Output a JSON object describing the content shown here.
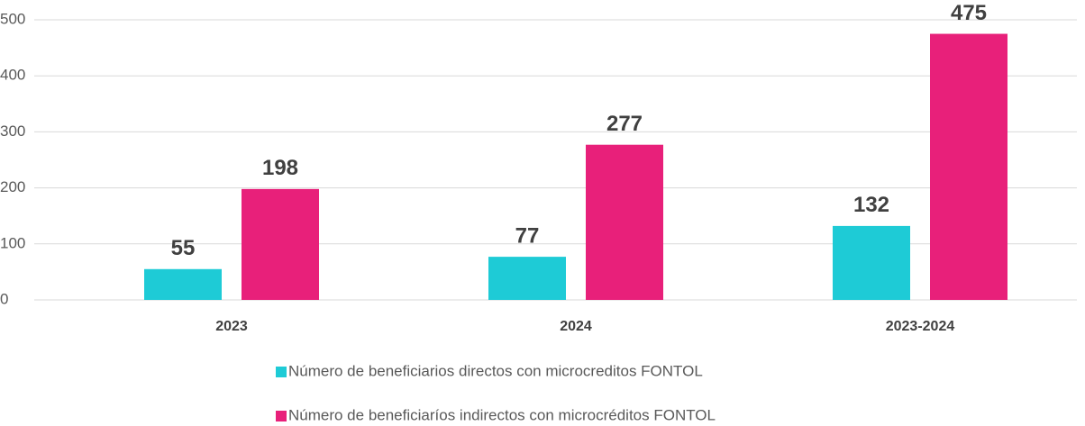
{
  "chart_data": {
    "type": "bar",
    "categories": [
      "2023",
      "2024",
      "2023-2024"
    ],
    "series": [
      {
        "name": "Número de beneficiarios directos con microcreditos FONTOL",
        "color": "#1ecbd6",
        "values": [
          55,
          77,
          132
        ]
      },
      {
        "name": "Número de beneficiaríos indirectos con microcréditos FONTOL",
        "color": "#e8207a",
        "values": [
          198,
          277,
          475
        ]
      }
    ],
    "ylim": [
      0,
      500
    ],
    "yticks": [
      0,
      100,
      200,
      300,
      400,
      500
    ],
    "grid": true,
    "legend": "bottom"
  }
}
